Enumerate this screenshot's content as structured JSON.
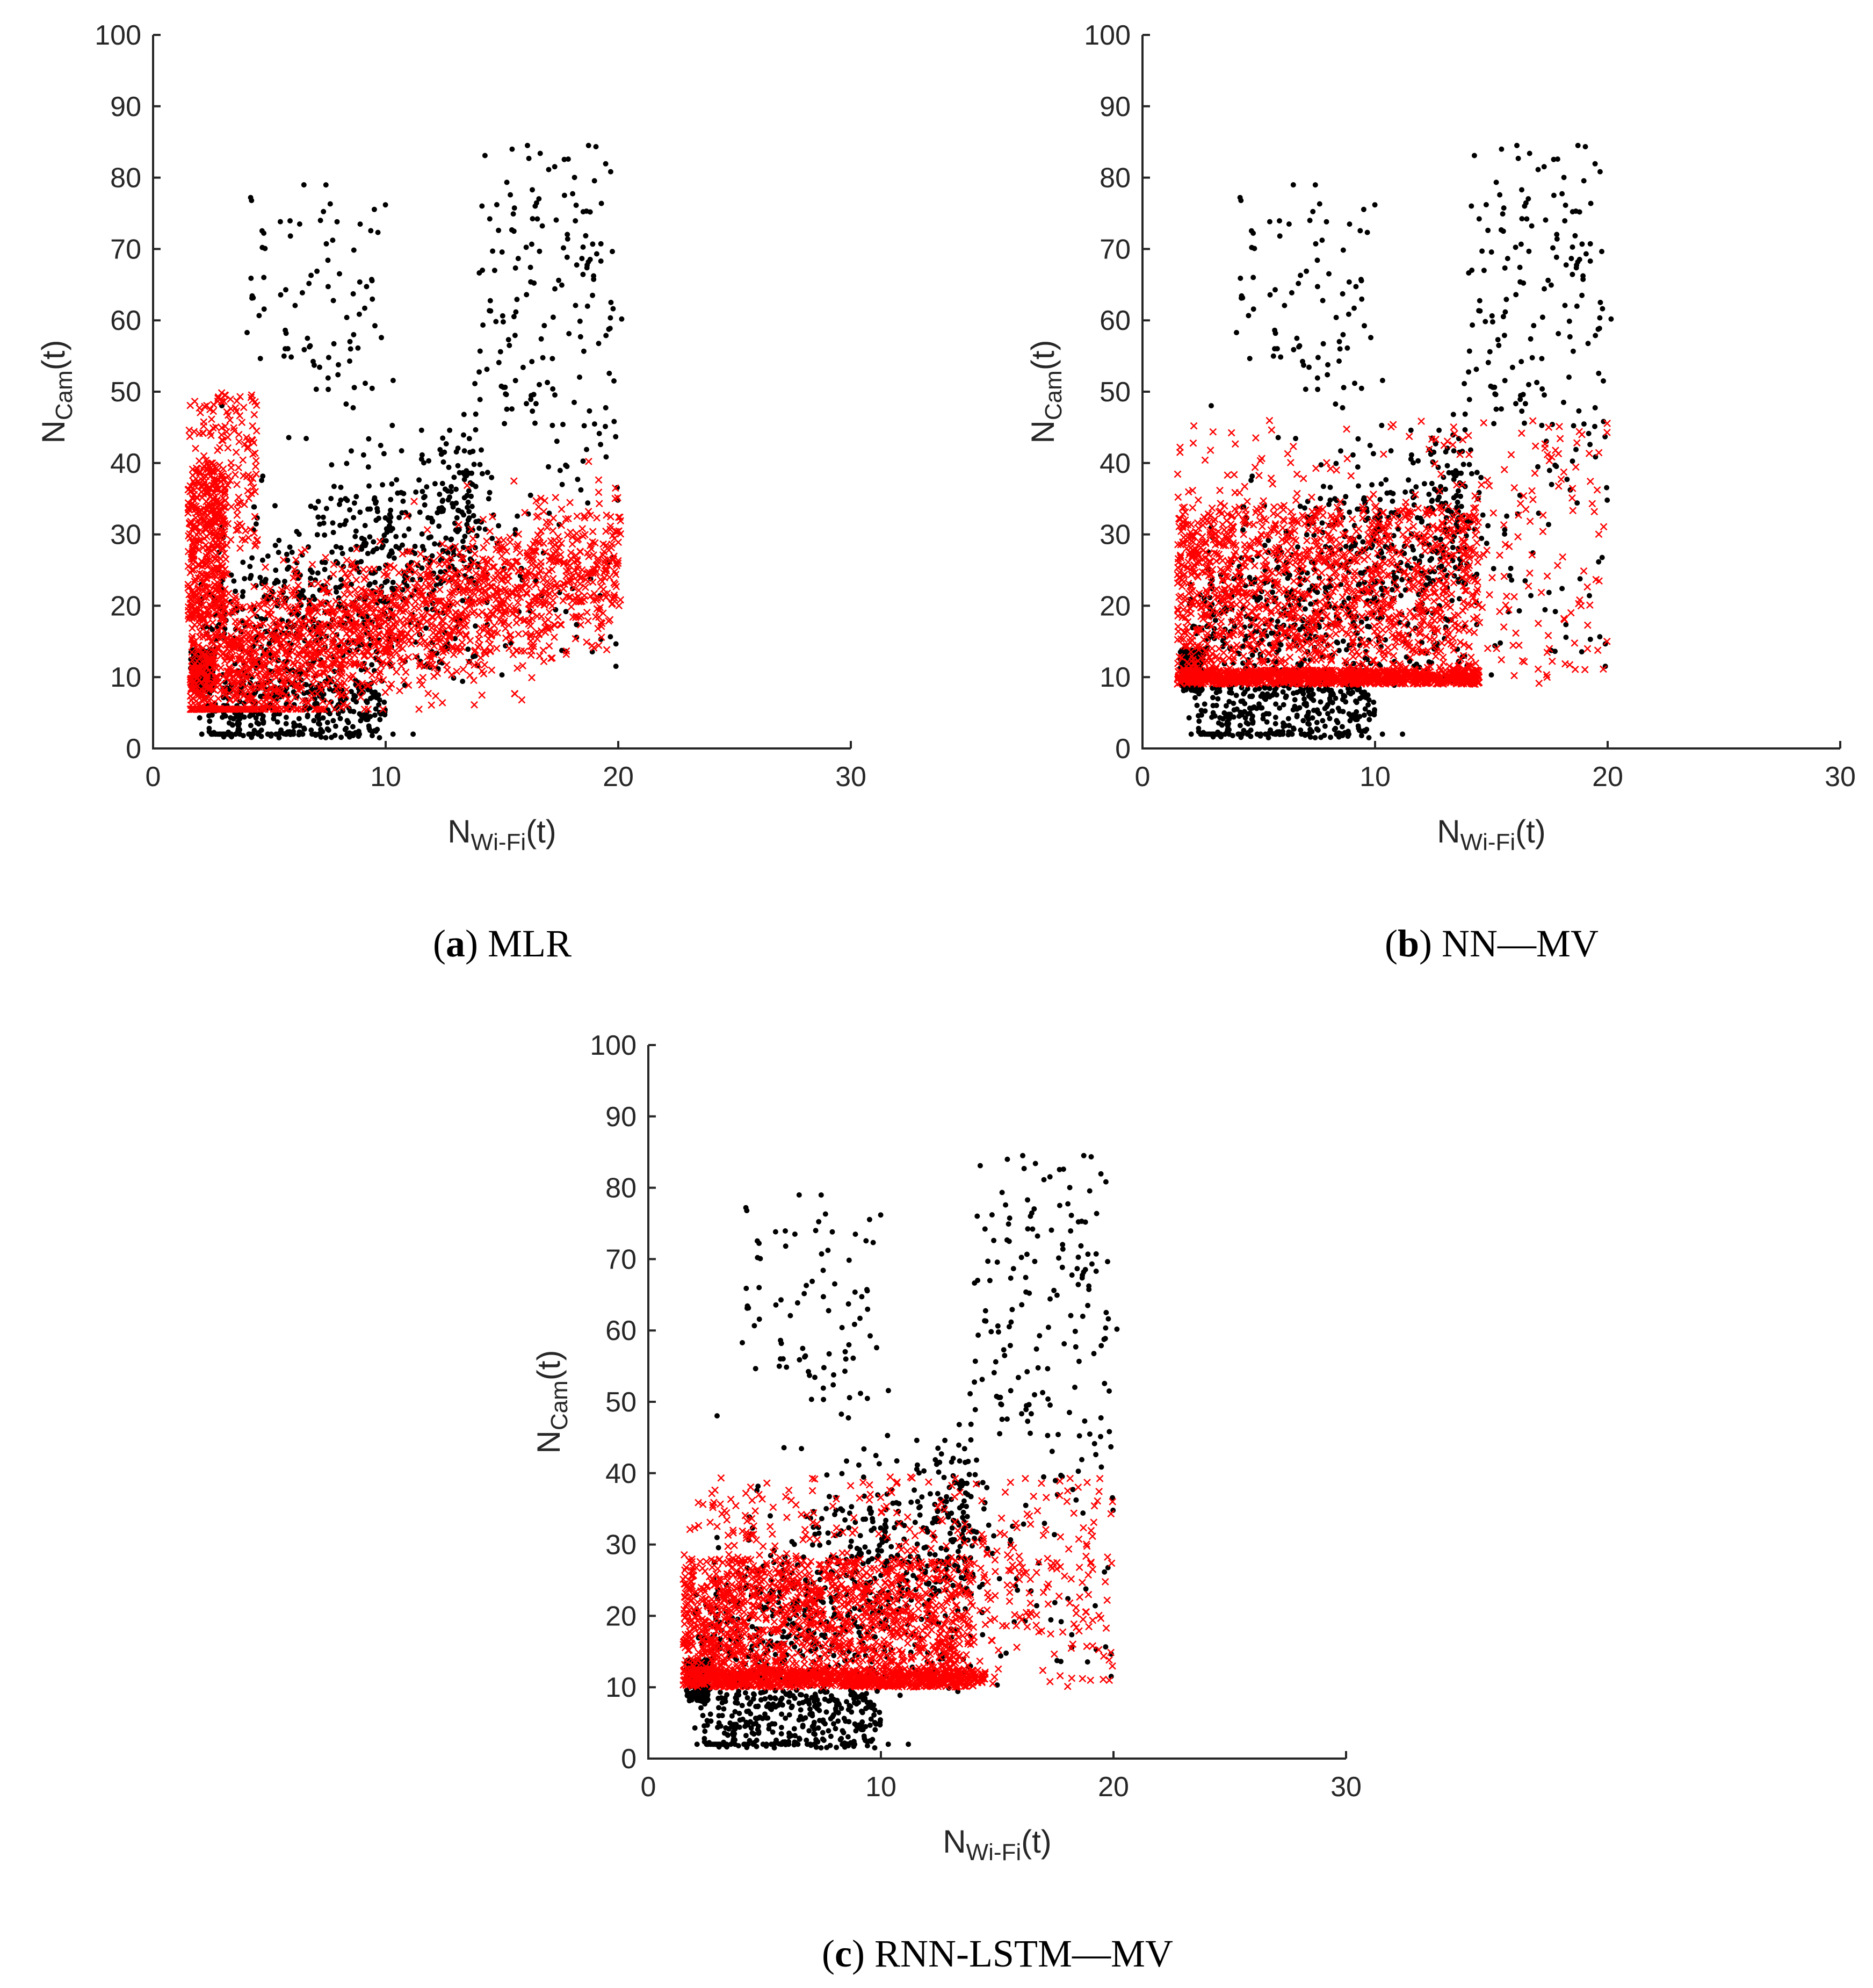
{
  "chart_data": [
    {
      "type": "scatter",
      "caption_letter": "a",
      "caption_text": "MLR",
      "xlim": [
        0,
        30
      ],
      "ylim": [
        0,
        100
      ],
      "xticks": [
        0,
        10,
        20,
        30
      ],
      "yticks": [
        0,
        10,
        20,
        30,
        40,
        50,
        60,
        70,
        80,
        90,
        100
      ],
      "xlabel_main": "N",
      "xlabel_sub": "Wi-Fi",
      "xlabel_tail": "(t)",
      "ylabel_main": "N",
      "ylabel_sub": "Cam",
      "ylabel_tail": "(t)",
      "grid": false,
      "series": [
        {
          "marker": "dot",
          "color": "#000000",
          "distribution": "observed",
          "approx_points": 1600
        },
        {
          "marker": "x",
          "color": "#ff0000",
          "distribution": "mlr",
          "approx_points": 2600
        }
      ]
    },
    {
      "type": "scatter",
      "caption_letter": "b",
      "caption_text": "NN—MV",
      "xlim": [
        0,
        30
      ],
      "ylim": [
        0,
        100
      ],
      "xticks": [
        0,
        10,
        20,
        30
      ],
      "yticks": [
        0,
        10,
        20,
        30,
        40,
        50,
        60,
        70,
        80,
        90,
        100
      ],
      "xlabel_main": "N",
      "xlabel_sub": "Wi-Fi",
      "xlabel_tail": "(t)",
      "ylabel_main": "N",
      "ylabel_sub": "Cam",
      "ylabel_tail": "(t)",
      "grid": false,
      "series": [
        {
          "marker": "dot",
          "color": "#000000",
          "distribution": "observed",
          "approx_points": 1600
        },
        {
          "marker": "x",
          "color": "#ff0000",
          "distribution": "nn",
          "approx_points": 2600
        }
      ]
    },
    {
      "type": "scatter",
      "caption_letter": "c",
      "caption_text": "RNN-LSTM—MV",
      "xlim": [
        0,
        30
      ],
      "ylim": [
        0,
        100
      ],
      "xticks": [
        0,
        10,
        20,
        30
      ],
      "yticks": [
        0,
        10,
        20,
        30,
        40,
        50,
        60,
        70,
        80,
        90,
        100
      ],
      "xlabel_main": "N",
      "xlabel_sub": "Wi-Fi",
      "xlabel_tail": "(t)",
      "ylabel_main": "N",
      "ylabel_sub": "Cam",
      "ylabel_tail": "(t)",
      "grid": false,
      "series": [
        {
          "marker": "dot",
          "color": "#000000",
          "distribution": "observed",
          "approx_points": 1600
        },
        {
          "marker": "x",
          "color": "#ff0000",
          "distribution": "lstm",
          "approx_points": 2600
        }
      ]
    }
  ]
}
